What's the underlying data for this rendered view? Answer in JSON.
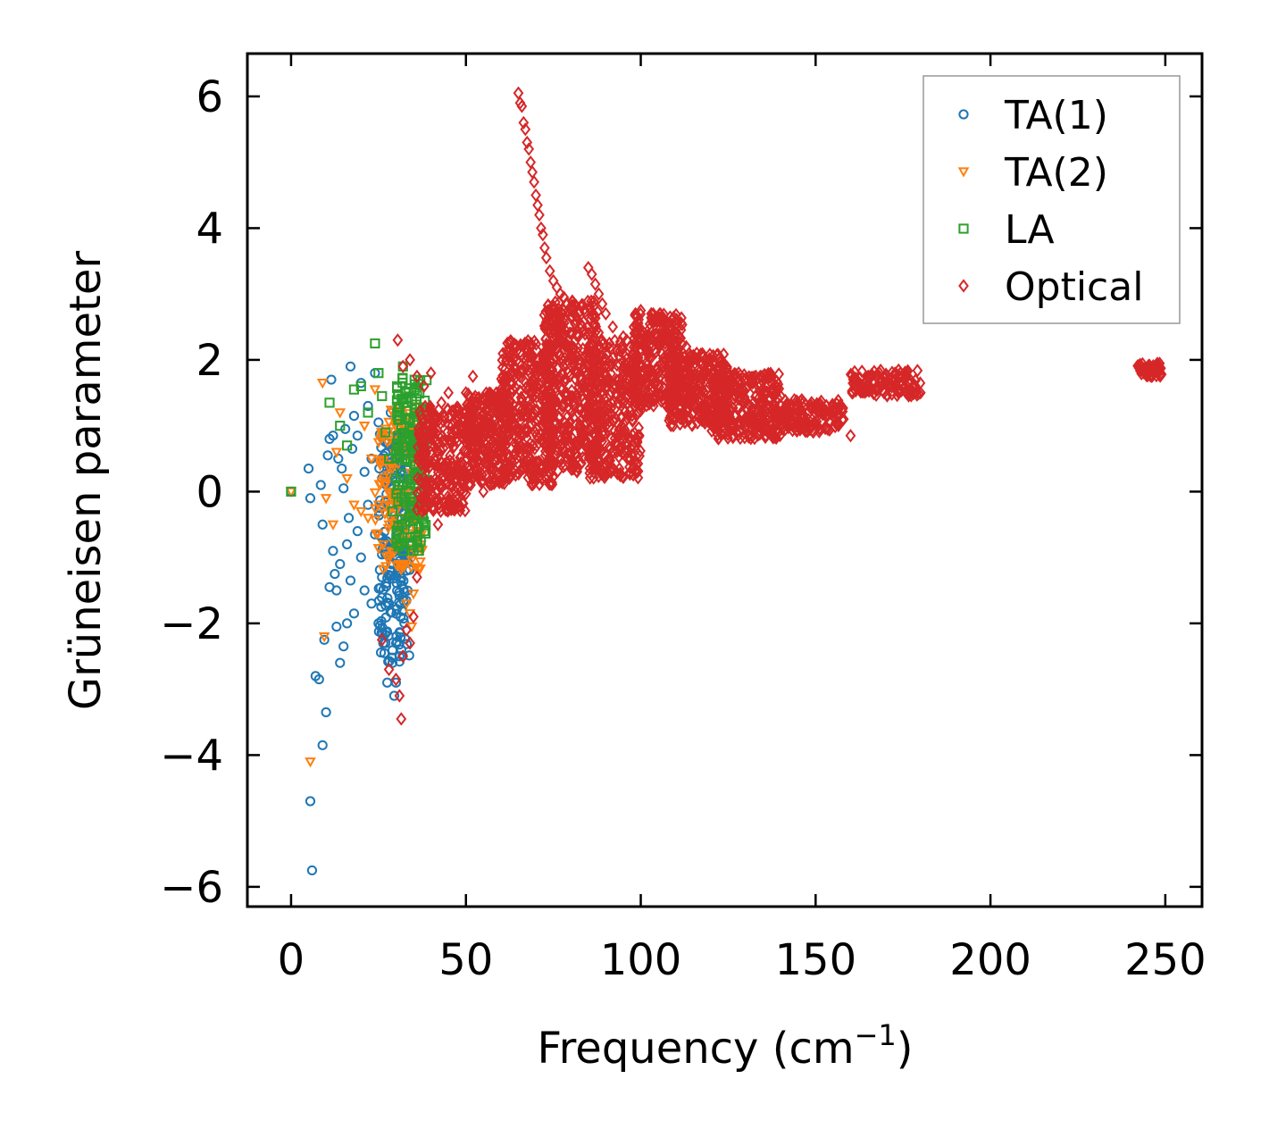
{
  "chart_data": {
    "type": "scatter",
    "title": "",
    "xlabel": "Frequency (cm",
    "xlabel_sup": "−1",
    "xlabel_close": ")",
    "ylabel": "Grüneisen parameter",
    "xlim": [
      -12.5,
      260.5
    ],
    "ylim": [
      -6.3,
      6.65
    ],
    "xticks": [
      0,
      50,
      100,
      150,
      200,
      250
    ],
    "xtick_labels": [
      "0",
      "50",
      "100",
      "150",
      "200",
      "250"
    ],
    "yticks": [
      -6,
      -4,
      -2,
      0,
      2,
      4,
      6
    ],
    "ytick_labels": [
      "−6",
      "−4",
      "−2",
      "0",
      "2",
      "4",
      "6"
    ],
    "grid": false,
    "legend_position": "top-right",
    "series": [
      {
        "name": "TA(1)",
        "marker": "circle",
        "color": "#1f77b4",
        "points": [
          [
            0,
            0
          ],
          [
            5,
            0.35
          ],
          [
            5.5,
            -0.1
          ],
          [
            5.5,
            -4.7
          ],
          [
            6,
            -5.75
          ],
          [
            7,
            -2.8
          ],
          [
            8,
            -2.85
          ],
          [
            8.5,
            0.1
          ],
          [
            9,
            -3.85
          ],
          [
            9,
            -0.5
          ],
          [
            9.5,
            -2.25
          ],
          [
            10,
            -3.35
          ],
          [
            10.5,
            0.55
          ],
          [
            11,
            0.8
          ],
          [
            11,
            -1.45
          ],
          [
            11.5,
            1.7
          ],
          [
            12,
            0.85
          ],
          [
            12,
            -0.9
          ],
          [
            12.5,
            -1.25
          ],
          [
            13,
            -1.5
          ],
          [
            13,
            -2.05
          ],
          [
            13.5,
            0.5
          ],
          [
            14,
            -2.6
          ],
          [
            14,
            -1.1
          ],
          [
            14.5,
            0.35
          ],
          [
            15,
            -2.35
          ],
          [
            15,
            0.05
          ],
          [
            15.5,
            0.95
          ],
          [
            16,
            -2.0
          ],
          [
            16,
            -0.8
          ],
          [
            16.5,
            -0.4
          ],
          [
            17,
            1.9
          ],
          [
            17,
            -1.35
          ],
          [
            17.5,
            0.65
          ],
          [
            18,
            -1.85
          ],
          [
            18,
            1.15
          ],
          [
            19,
            0.85
          ],
          [
            19,
            -0.6
          ],
          [
            20,
            1.65
          ],
          [
            20,
            -1.0
          ],
          [
            21,
            0.3
          ],
          [
            21,
            -1.5
          ],
          [
            22,
            1.3
          ],
          [
            22,
            -0.2
          ],
          [
            23,
            0.5
          ],
          [
            23,
            -1.7
          ],
          [
            24,
            1.8
          ],
          [
            24,
            -0.65
          ],
          [
            25,
            1.05
          ],
          [
            25,
            -2.0
          ],
          [
            26,
            0.2
          ],
          [
            26,
            -1.3
          ],
          [
            27,
            -2.3
          ],
          [
            27,
            0.75
          ],
          [
            27.5,
            -2.9
          ],
          [
            28,
            -1.7
          ],
          [
            28.5,
            1.2
          ],
          [
            29,
            -2.6
          ],
          [
            29,
            -0.45
          ],
          [
            29.5,
            -3.1
          ],
          [
            30,
            -2.9
          ],
          [
            30,
            0.15
          ],
          [
            30.5,
            -1.1
          ],
          [
            31,
            -2.5
          ],
          [
            31,
            -0.9
          ],
          [
            31.5,
            0.4
          ],
          [
            32,
            -1.6
          ],
          [
            32,
            -0.3
          ],
          [
            32.5,
            0.9
          ],
          [
            33,
            -0.5
          ],
          [
            33,
            -1.2
          ],
          [
            33.5,
            0.2
          ],
          [
            34,
            -0.8
          ],
          [
            34,
            0.6
          ],
          [
            34.5,
            -0.2
          ]
        ],
        "clusters": [
          {
            "x": [
              25,
              34
            ],
            "y": [
              -2.6,
              0.9
            ],
            "n": 200
          }
        ]
      },
      {
        "name": "TA(2)",
        "marker": "triangle-down",
        "color": "#ff7f0e",
        "points": [
          [
            0,
            0
          ],
          [
            5.5,
            -4.1
          ],
          [
            9,
            1.65
          ],
          [
            9.5,
            -2.2
          ],
          [
            10,
            -0.1
          ],
          [
            12,
            -0.5
          ],
          [
            13,
            0.6
          ],
          [
            14,
            1.2
          ],
          [
            16,
            0.2
          ],
          [
            18,
            -0.2
          ],
          [
            20,
            -0.3
          ],
          [
            21,
            1.0
          ],
          [
            22,
            -0.4
          ],
          [
            23,
            0.5
          ],
          [
            24,
            1.55
          ],
          [
            25,
            -0.2
          ],
          [
            26,
            0.9
          ],
          [
            27,
            0.1
          ],
          [
            28,
            -0.5
          ],
          [
            29,
            0.35
          ],
          [
            30,
            1.1
          ],
          [
            31,
            -0.4
          ],
          [
            32,
            0.7
          ],
          [
            33,
            -1.7
          ],
          [
            34,
            -1.85
          ],
          [
            34.5,
            -2.05
          ],
          [
            35,
            -1.55
          ],
          [
            35.5,
            0.5
          ],
          [
            36,
            -0.6
          ],
          [
            36.5,
            1.1
          ],
          [
            37,
            0.1
          ],
          [
            38,
            -0.3
          ],
          [
            38.5,
            0.9
          ]
        ],
        "clusters": [
          {
            "x": [
              24,
              38
            ],
            "y": [
              -1.2,
              1.3
            ],
            "n": 160
          }
        ]
      },
      {
        "name": "LA",
        "marker": "square",
        "color": "#2ca02c",
        "points": [
          [
            0,
            0
          ],
          [
            11,
            1.35
          ],
          [
            14,
            1.0
          ],
          [
            16,
            0.7
          ],
          [
            18,
            1.55
          ],
          [
            20,
            1.6
          ],
          [
            22,
            1.2
          ],
          [
            24,
            2.25
          ],
          [
            25,
            1.8
          ],
          [
            26,
            1.45
          ],
          [
            27,
            0.9
          ],
          [
            28,
            0.5
          ],
          [
            29,
            -0.3
          ],
          [
            30,
            0.2
          ],
          [
            31,
            1.1
          ],
          [
            32,
            1.9
          ],
          [
            33,
            1.5
          ],
          [
            34,
            -0.7
          ],
          [
            35,
            -0.9
          ],
          [
            36,
            0.6
          ],
          [
            37,
            0.0
          ],
          [
            38,
            0.85
          ],
          [
            39,
            1.0
          ]
        ],
        "clusters": [
          {
            "x": [
              30,
              39
            ],
            "y": [
              -0.9,
              1.8
            ],
            "n": 170
          }
        ]
      },
      {
        "name": "Optical",
        "marker": "diamond",
        "color": "#d62728",
        "points": [
          [
            26,
            -2.25
          ],
          [
            28,
            -2.7
          ],
          [
            30,
            -2.85
          ],
          [
            31,
            -3.1
          ],
          [
            31.5,
            -3.45
          ],
          [
            32,
            -2.5
          ],
          [
            33,
            -2.1
          ],
          [
            34,
            -2.3
          ],
          [
            35,
            -1.9
          ],
          [
            36,
            -1.3
          ],
          [
            30.5,
            2.3
          ],
          [
            32,
            1.9
          ],
          [
            34,
            2.0
          ],
          [
            36,
            1.75
          ],
          [
            38,
            1.6
          ],
          [
            40,
            1.8
          ],
          [
            42,
            -0.5
          ],
          [
            43,
            1.35
          ],
          [
            45,
            1.5
          ],
          [
            50,
            1.5
          ],
          [
            52,
            1.75
          ],
          [
            55,
            0.0
          ],
          [
            57,
            1.45
          ],
          [
            60,
            1.55
          ],
          [
            62,
            1.2
          ],
          [
            65,
            6.05
          ],
          [
            65.5,
            5.9
          ],
          [
            66,
            5.85
          ],
          [
            66.5,
            5.6
          ],
          [
            67,
            5.5
          ],
          [
            67.5,
            5.3
          ],
          [
            68,
            5.2
          ],
          [
            68.5,
            5.0
          ],
          [
            69,
            4.85
          ],
          [
            69.5,
            4.7
          ],
          [
            70,
            4.5
          ],
          [
            70.5,
            4.35
          ],
          [
            71,
            4.2
          ],
          [
            71.5,
            4.0
          ],
          [
            72,
            3.9
          ],
          [
            72.5,
            3.7
          ],
          [
            73,
            3.55
          ],
          [
            74,
            3.35
          ],
          [
            75,
            3.2
          ],
          [
            76,
            3.1
          ],
          [
            77,
            3.0
          ],
          [
            78,
            2.95
          ],
          [
            79,
            2.85
          ],
          [
            80,
            2.75
          ],
          [
            85,
            3.4
          ],
          [
            86,
            3.3
          ],
          [
            87,
            3.15
          ],
          [
            88,
            3.0
          ],
          [
            89,
            2.85
          ],
          [
            90,
            2.7
          ],
          [
            92,
            2.5
          ],
          [
            95,
            2.35
          ],
          [
            98,
            2.5
          ],
          [
            100,
            2.75
          ],
          [
            103,
            2.7
          ],
          [
            106,
            2.6
          ],
          [
            108,
            2.5
          ],
          [
            110,
            2.4
          ],
          [
            113,
            2.2
          ],
          [
            116,
            2.1
          ],
          [
            118,
            2.05
          ],
          [
            120,
            2.0
          ],
          [
            124,
            1.85
          ],
          [
            128,
            1.8
          ],
          [
            132,
            1.65
          ],
          [
            136,
            1.5
          ],
          [
            140,
            1.45
          ],
          [
            145,
            1.35
          ],
          [
            150,
            1.25
          ],
          [
            155,
            1.3
          ],
          [
            158,
            1.1
          ],
          [
            160,
            0.85
          ],
          [
            162,
            1.65
          ],
          [
            165,
            1.75
          ],
          [
            168,
            1.7
          ],
          [
            171,
            1.6
          ],
          [
            174,
            1.75
          ],
          [
            177,
            1.55
          ],
          [
            180,
            1.5
          ],
          [
            243,
            1.9
          ],
          [
            244,
            1.85
          ],
          [
            245,
            1.8
          ],
          [
            246,
            1.75
          ],
          [
            247,
            1.85
          ],
          [
            248,
            1.8
          ]
        ],
        "clusters": [
          {
            "x": [
              36,
              50
            ],
            "y": [
              -0.3,
              1.3
            ],
            "n": 300
          },
          {
            "x": [
              50,
              63
            ],
            "y": [
              0.1,
              1.5
            ],
            "n": 300
          },
          {
            "x": [
              60,
              75
            ],
            "y": [
              0.1,
              2.3
            ],
            "n": 350
          },
          {
            "x": [
              72,
              88
            ],
            "y": [
              0.3,
              2.9
            ],
            "n": 450
          },
          {
            "x": [
              85,
              100
            ],
            "y": [
              0.2,
              2.3
            ],
            "n": 350
          },
          {
            "x": [
              98,
              112
            ],
            "y": [
              1.3,
              2.7
            ],
            "n": 300
          },
          {
            "x": [
              108,
              125
            ],
            "y": [
              1.0,
              2.1
            ],
            "n": 300
          },
          {
            "x": [
              120,
              140
            ],
            "y": [
              0.8,
              1.8
            ],
            "n": 300
          },
          {
            "x": [
              140,
              158
            ],
            "y": [
              0.9,
              1.4
            ],
            "n": 150
          },
          {
            "x": [
              160,
              180
            ],
            "y": [
              1.45,
              1.85
            ],
            "n": 120
          },
          {
            "x": [
              242,
              249
            ],
            "y": [
              1.75,
              1.95
            ],
            "n": 60
          }
        ]
      }
    ]
  }
}
